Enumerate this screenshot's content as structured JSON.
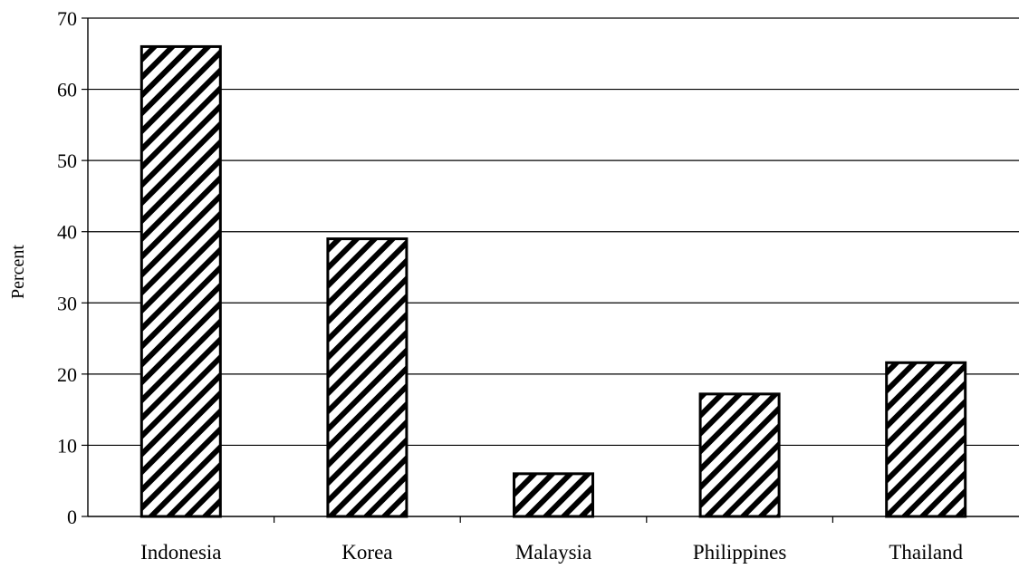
{
  "chart_data": {
    "type": "bar",
    "categories": [
      "Indonesia",
      "Korea",
      "Malaysia",
      "Philippines",
      "Thailand"
    ],
    "values": [
      66,
      39,
      6,
      17.2,
      21.6
    ],
    "title": "",
    "xlabel": "",
    "ylabel": "Percent",
    "ylim": [
      0,
      70
    ],
    "yticks": [
      0,
      10,
      20,
      30,
      40,
      50,
      60,
      70
    ],
    "grid": true,
    "legend": "none",
    "bar_fill": "diagonal-hatch",
    "colors": {
      "bar_stroke": "#000000",
      "hatch": "#000000",
      "background": "#ffffff"
    }
  }
}
